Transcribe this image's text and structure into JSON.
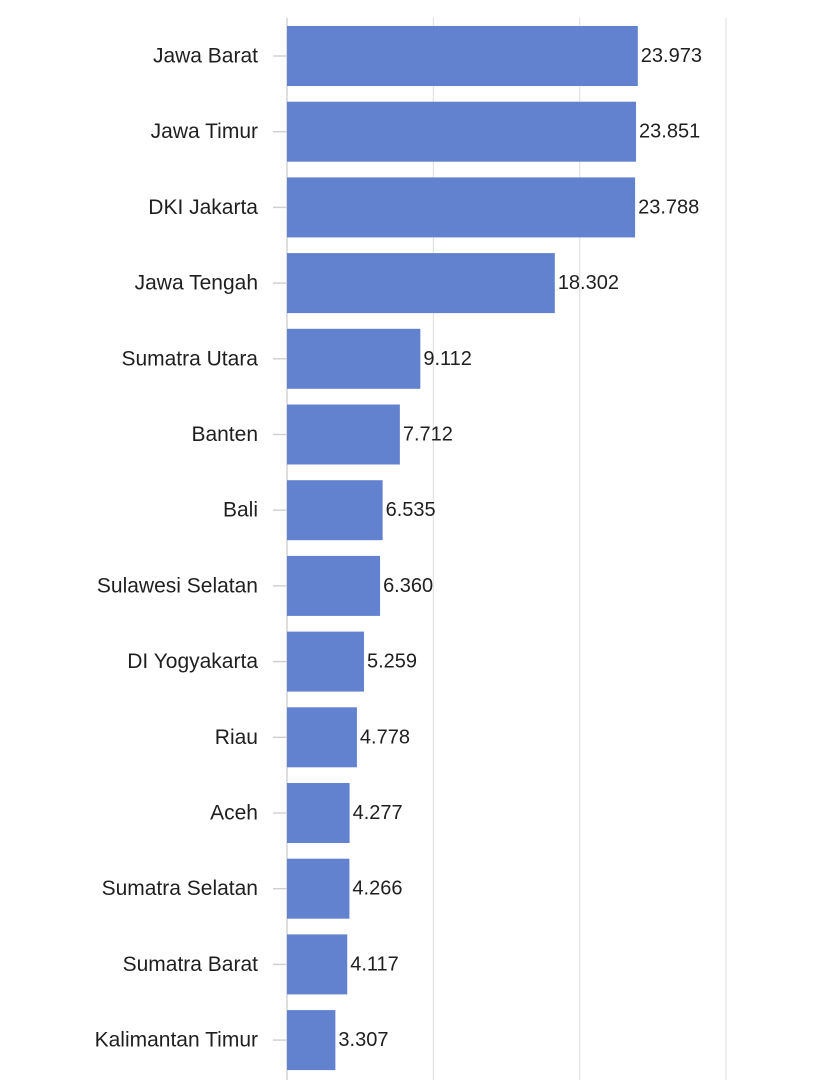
{
  "chart_data": {
    "type": "bar",
    "orientation": "horizontal",
    "categories": [
      "Jawa Barat",
      "Jawa Timur",
      "DKI Jakarta",
      "Jawa Tengah",
      "Sumatra Utara",
      "Banten",
      "Bali",
      "Sulawesi Selatan",
      "DI Yogyakarta",
      "Riau",
      "Aceh",
      "Sumatra Selatan",
      "Sumatra Barat",
      "Kalimantan Timur"
    ],
    "values": [
      23973,
      23851,
      23788,
      18302,
      9112,
      7712,
      6535,
      6360,
      5259,
      4778,
      4277,
      4266,
      4117,
      3307
    ],
    "value_labels": [
      "23.973",
      "23.851",
      "23.788",
      "18.302",
      "9.112",
      "7.712",
      "6.535",
      "6.360",
      "5.259",
      "4.778",
      "4.277",
      "4.266",
      "4.117",
      "3.307"
    ],
    "xlim": [
      0,
      30000
    ],
    "gridlines": [
      0,
      10000,
      20000,
      30000
    ],
    "grid": true,
    "legend": "none",
    "bar_color": "#6282cf",
    "title": "",
    "xlabel": "",
    "ylabel": ""
  }
}
